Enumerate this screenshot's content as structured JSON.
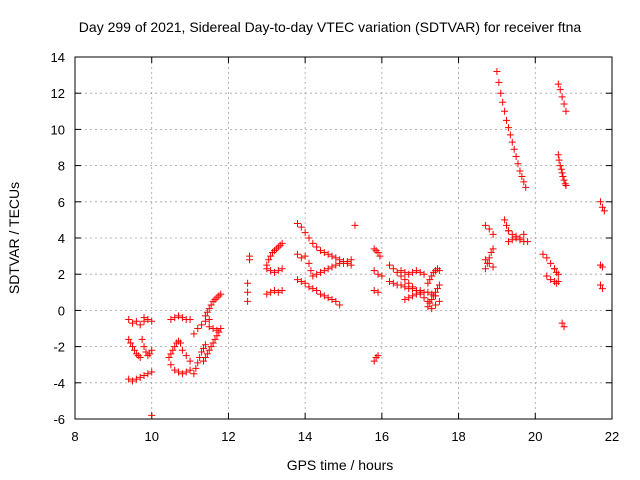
{
  "chart_data": {
    "type": "scatter",
    "title": "Day 299 of 2021, Sidereal Day-to-day VTEC variation (SDTVAR) for receiver ftna",
    "xlabel": "GPS time / hours",
    "ylabel": "SDTVAR / TECUs",
    "xlim": [
      8,
      22
    ],
    "ylim": [
      -6,
      14
    ],
    "xticks": [
      8,
      10,
      12,
      14,
      16,
      18,
      20,
      22
    ],
    "yticks": [
      -6,
      -4,
      -2,
      0,
      2,
      4,
      6,
      8,
      10,
      12,
      14
    ],
    "grid": true,
    "marker": "+",
    "color": "#ff0000",
    "series": [
      {
        "name": "s01",
        "x": [
          9.4,
          9.5,
          9.6,
          9.7,
          9.8
        ],
        "y": [
          -0.5,
          -0.7,
          -0.6,
          -0.8,
          -0.6
        ]
      },
      {
        "name": "s02",
        "x": [
          9.4,
          9.45,
          9.5,
          9.55,
          9.6,
          9.65,
          9.7
        ],
        "y": [
          -1.6,
          -1.8,
          -2.0,
          -2.2,
          -2.4,
          -2.5,
          -2.6
        ]
      },
      {
        "name": "s03",
        "x": [
          9.4,
          9.5,
          9.6,
          9.7,
          9.8,
          9.9,
          10.0
        ],
        "y": [
          -3.8,
          -3.9,
          -3.8,
          -3.7,
          -3.6,
          -3.5,
          -3.4
        ]
      },
      {
        "name": "s04",
        "x": [
          9.75,
          9.8,
          9.85,
          9.9,
          9.95,
          10.0
        ],
        "y": [
          -1.6,
          -2.0,
          -2.3,
          -2.5,
          -2.4,
          -2.2
        ]
      },
      {
        "name": "s05",
        "x": [
          9.8,
          9.9,
          10.0
        ],
        "y": [
          -0.4,
          -0.5,
          -0.6
        ]
      },
      {
        "name": "s06",
        "x": [
          10.0
        ],
        "y": [
          -5.8
        ]
      },
      {
        "name": "s07",
        "x": [
          10.5,
          10.6,
          10.7,
          10.8,
          10.9,
          11.0
        ],
        "y": [
          -0.5,
          -0.4,
          -0.3,
          -0.4,
          -0.5,
          -0.5
        ]
      },
      {
        "name": "s08",
        "x": [
          10.45,
          10.5,
          10.55,
          10.6,
          10.65,
          10.7,
          10.75
        ],
        "y": [
          -2.6,
          -2.4,
          -2.2,
          -2.0,
          -1.8,
          -1.7,
          -1.8
        ]
      },
      {
        "name": "s09",
        "x": [
          10.5,
          10.6,
          10.7,
          10.8,
          10.9,
          11.0
        ],
        "y": [
          -3.0,
          -3.3,
          -3.4,
          -3.5,
          -3.4,
          -3.3
        ]
      },
      {
        "name": "s10",
        "x": [
          10.8,
          10.9,
          11.0
        ],
        "y": [
          -2.2,
          -2.5,
          -2.8
        ]
      },
      {
        "name": "s11",
        "x": [
          11.1,
          11.15,
          11.2,
          11.25,
          11.3,
          11.35,
          11.4
        ],
        "y": [
          -3.5,
          -3.2,
          -2.9,
          -2.6,
          -2.3,
          -2.1,
          -1.9
        ]
      },
      {
        "name": "s12",
        "x": [
          11.1,
          11.2,
          11.3,
          11.4,
          11.5
        ],
        "y": [
          -1.3,
          -1.0,
          -0.8,
          -0.6,
          -0.5
        ]
      },
      {
        "name": "s13",
        "x": [
          11.4,
          11.45,
          11.5,
          11.55,
          11.6,
          11.65,
          11.7,
          11.75,
          11.8
        ],
        "y": [
          -0.3,
          -0.1,
          0.1,
          0.3,
          0.5,
          0.6,
          0.7,
          0.8,
          0.9
        ]
      },
      {
        "name": "s14",
        "x": [
          11.35,
          11.4,
          11.45,
          11.5,
          11.55,
          11.6,
          11.65,
          11.7,
          11.75,
          11.8
        ],
        "y": [
          -2.8,
          -2.6,
          -2.4,
          -2.2,
          -2.0,
          -1.8,
          -1.6,
          -1.4,
          -1.2,
          -1.0
        ]
      },
      {
        "name": "s15",
        "x": [
          11.5,
          11.6,
          11.7
        ],
        "y": [
          -0.9,
          -1.0,
          -1.1
        ]
      },
      {
        "name": "s16",
        "x": [
          12.5,
          12.5,
          12.5,
          12.55,
          12.55
        ],
        "y": [
          0.5,
          1.0,
          1.5,
          2.8,
          3.0
        ]
      },
      {
        "name": "s17",
        "x": [
          13.0,
          13.05,
          13.1,
          13.15,
          13.2,
          13.25,
          13.3,
          13.35,
          13.4
        ],
        "y": [
          2.5,
          2.8,
          3.0,
          3.2,
          3.3,
          3.4,
          3.5,
          3.6,
          3.7
        ]
      },
      {
        "name": "s18",
        "x": [
          13.0,
          13.1,
          13.2,
          13.3,
          13.4
        ],
        "y": [
          2.3,
          2.2,
          2.1,
          2.2,
          2.3
        ]
      },
      {
        "name": "s19",
        "x": [
          13.0,
          13.1,
          13.2,
          13.3,
          13.4
        ],
        "y": [
          0.9,
          1.0,
          1.1,
          1.0,
          1.1
        ]
      },
      {
        "name": "s20",
        "x": [
          13.8,
          13.9,
          14.0,
          14.1,
          14.2,
          14.3,
          14.4,
          14.5,
          14.6,
          14.7,
          14.8,
          14.9
        ],
        "y": [
          1.7,
          1.6,
          1.5,
          1.3,
          1.2,
          1.1,
          0.9,
          0.8,
          0.7,
          0.6,
          0.5,
          0.3
        ]
      },
      {
        "name": "s21",
        "x": [
          13.8,
          13.9,
          14.0,
          14.1,
          14.2,
          14.3,
          14.4,
          14.5,
          14.6,
          14.7,
          14.8,
          14.9,
          15.0,
          15.1,
          15.2
        ],
        "y": [
          4.8,
          4.6,
          4.3,
          4.0,
          3.7,
          3.5,
          3.3,
          3.2,
          3.1,
          3.0,
          2.9,
          2.8,
          2.7,
          2.6,
          2.5
        ]
      },
      {
        "name": "s22",
        "x": [
          13.8,
          13.9,
          14.0
        ],
        "y": [
          3.1,
          2.9,
          3.0
        ]
      },
      {
        "name": "s23",
        "x": [
          14.1,
          14.15,
          14.2,
          14.3,
          14.4,
          14.5,
          14.6,
          14.7,
          14.8,
          14.9,
          15.0,
          15.1,
          15.2
        ],
        "y": [
          2.6,
          2.2,
          1.9,
          2.0,
          2.1,
          2.2,
          2.3,
          2.4,
          2.5,
          2.6,
          2.6,
          2.7,
          2.8
        ]
      },
      {
        "name": "s24",
        "x": [
          15.3
        ],
        "y": [
          4.7
        ]
      },
      {
        "name": "s25",
        "x": [
          15.8,
          15.85,
          15.9,
          15.95
        ],
        "y": [
          3.4,
          3.3,
          3.2,
          3.0
        ]
      },
      {
        "name": "s26",
        "x": [
          15.8,
          15.9,
          16.0
        ],
        "y": [
          2.2,
          2.0,
          1.9
        ]
      },
      {
        "name": "s27",
        "x": [
          15.8,
          15.9
        ],
        "y": [
          1.1,
          1.0
        ]
      },
      {
        "name": "s28",
        "x": [
          15.8,
          15.85,
          15.9
        ],
        "y": [
          -2.8,
          -2.6,
          -2.5
        ]
      },
      {
        "name": "s29",
        "x": [
          16.2,
          16.3,
          16.4,
          16.5,
          16.6,
          16.7,
          16.8,
          16.9,
          17.0,
          17.1,
          17.2
        ],
        "y": [
          2.5,
          2.3,
          2.1,
          1.9,
          1.7,
          1.5,
          1.3,
          1.1,
          0.9,
          0.7,
          0.5
        ]
      },
      {
        "name": "s30",
        "x": [
          16.2,
          16.3,
          16.4,
          16.5,
          16.6,
          16.7,
          16.8,
          16.9,
          17.0,
          17.1,
          17.2,
          17.3,
          17.4
        ],
        "y": [
          1.6,
          1.5,
          1.4,
          1.4,
          1.3,
          1.2,
          1.2,
          1.1,
          1.1,
          1.0,
          1.0,
          0.9,
          0.8
        ]
      },
      {
        "name": "s31",
        "x": [
          16.5,
          16.6,
          16.7,
          16.8,
          16.9,
          17.0,
          17.1
        ],
        "y": [
          2.2,
          2.1,
          2.0,
          2.1,
          2.2,
          2.1,
          2.0
        ]
      },
      {
        "name": "s32",
        "x": [
          16.6,
          16.7,
          16.8,
          16.9,
          17.0
        ],
        "y": [
          0.6,
          0.7,
          0.8,
          0.9,
          1.0
        ]
      },
      {
        "name": "s33",
        "x": [
          17.2,
          17.25,
          17.3,
          17.35,
          17.4,
          17.45,
          17.5
        ],
        "y": [
          0.2,
          0.4,
          0.6,
          0.8,
          1.0,
          1.2,
          1.4
        ]
      },
      {
        "name": "s34",
        "x": [
          17.2,
          17.25,
          17.3,
          17.35,
          17.4,
          17.45,
          17.5
        ],
        "y": [
          1.5,
          1.7,
          1.9,
          2.1,
          2.2,
          2.3,
          2.2
        ]
      },
      {
        "name": "s35",
        "x": [
          17.3,
          17.4,
          17.5
        ],
        "y": [
          0.1,
          0.3,
          0.5
        ]
      },
      {
        "name": "s36",
        "x": [
          18.7,
          18.75,
          18.8,
          18.85,
          18.9
        ],
        "y": [
          2.3,
          2.6,
          2.9,
          3.2,
          3.4
        ]
      },
      {
        "name": "s37",
        "x": [
          18.7,
          18.8,
          18.9
        ],
        "y": [
          4.7,
          4.5,
          4.2
        ]
      },
      {
        "name": "s38",
        "x": [
          18.7,
          18.8,
          18.9
        ],
        "y": [
          2.8,
          2.6,
          2.4
        ]
      },
      {
        "name": "s39",
        "x": [
          19.0,
          19.05,
          19.1,
          19.15,
          19.2,
          19.25,
          19.3,
          19.35,
          19.4,
          19.45,
          19.5,
          19.55,
          19.6,
          19.65,
          19.7,
          19.75
        ],
        "y": [
          13.2,
          12.6,
          12.0,
          11.5,
          11.0,
          10.5,
          10.1,
          9.7,
          9.3,
          8.9,
          8.5,
          8.1,
          7.7,
          7.4,
          7.1,
          6.8
        ]
      },
      {
        "name": "s40",
        "x": [
          19.3,
          19.4,
          19.5,
          19.6,
          19.7,
          19.8
        ],
        "y": [
          4.4,
          4.2,
          4.0,
          3.9,
          3.8,
          3.8
        ]
      },
      {
        "name": "s41",
        "x": [
          19.3,
          19.4,
          19.5,
          19.6,
          19.7
        ],
        "y": [
          3.8,
          3.9,
          4.1,
          4.0,
          4.2
        ]
      },
      {
        "name": "s42",
        "x": [
          19.2,
          19.25,
          19.3
        ],
        "y": [
          5.0,
          4.7,
          4.4
        ]
      },
      {
        "name": "s43",
        "x": [
          20.2,
          20.3,
          20.4,
          20.5
        ],
        "y": [
          3.1,
          2.9,
          2.6,
          2.3
        ]
      },
      {
        "name": "s44",
        "x": [
          20.3,
          20.4,
          20.5,
          20.55,
          20.6
        ],
        "y": [
          1.9,
          1.7,
          1.6,
          1.5,
          1.6
        ]
      },
      {
        "name": "s45",
        "x": [
          20.5,
          20.55,
          20.6
        ],
        "y": [
          2.3,
          2.1,
          2.0
        ]
      },
      {
        "name": "s46",
        "x": [
          20.6,
          20.65,
          20.7,
          20.75,
          20.8
        ],
        "y": [
          12.5,
          12.2,
          11.8,
          11.4,
          11.0
        ]
      },
      {
        "name": "s47",
        "x": [
          20.6,
          20.62,
          20.65,
          20.68,
          20.7,
          20.72,
          20.75,
          20.78,
          20.8
        ],
        "y": [
          8.6,
          8.3,
          8.0,
          7.8,
          7.6,
          7.4,
          7.2,
          7.0,
          6.9
        ]
      },
      {
        "name": "s48",
        "x": [
          20.7,
          20.75
        ],
        "y": [
          -0.7,
          -0.9
        ]
      },
      {
        "name": "s49",
        "x": [
          21.7,
          21.75,
          21.8
        ],
        "y": [
          6.0,
          5.7,
          5.5
        ]
      },
      {
        "name": "s50",
        "x": [
          21.7,
          21.75
        ],
        "y": [
          2.5,
          2.4
        ]
      },
      {
        "name": "s51",
        "x": [
          21.7,
          21.75
        ],
        "y": [
          1.4,
          1.2
        ]
      }
    ]
  }
}
